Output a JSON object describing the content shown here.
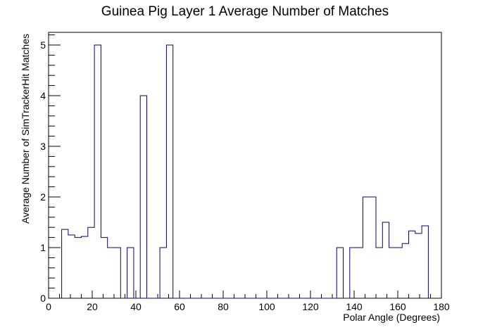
{
  "chart_data": {
    "type": "bar",
    "title": "Guinea Pig Layer 1 Average Number of Matches",
    "xlabel": "Polar Angle (Degrees)",
    "ylabel": "Average Number of SimTrackerHit Matches",
    "xlim": [
      0,
      180
    ],
    "ylim": [
      0,
      5.25
    ],
    "grid": false,
    "bin_width": 3,
    "bin_start": 6,
    "x_ticks": [
      "0",
      "20",
      "40",
      "60",
      "80",
      "100",
      "120",
      "140",
      "160",
      "180"
    ],
    "y_ticks": [
      "0",
      "1",
      "2",
      "3",
      "4",
      "5"
    ],
    "x_tick_values": [
      0,
      20,
      40,
      60,
      80,
      100,
      120,
      140,
      160,
      180
    ],
    "y_tick_values": [
      0,
      1,
      2,
      3,
      4,
      5
    ],
    "line_color": "#000080",
    "values": [
      1.36,
      1.25,
      1.2,
      1.22,
      1.4,
      5,
      1.2,
      1,
      1,
      0,
      1,
      0,
      4,
      0,
      0,
      1,
      5,
      0,
      0,
      0,
      0,
      0,
      0,
      0,
      0,
      0,
      0,
      0,
      0,
      0,
      0,
      0,
      0,
      0,
      0,
      0,
      0,
      0,
      0,
      0,
      0,
      0,
      1,
      0,
      1,
      1,
      2,
      2,
      1,
      1.5,
      1,
      1,
      1.08,
      1.33,
      1.28,
      1.43
    ]
  }
}
